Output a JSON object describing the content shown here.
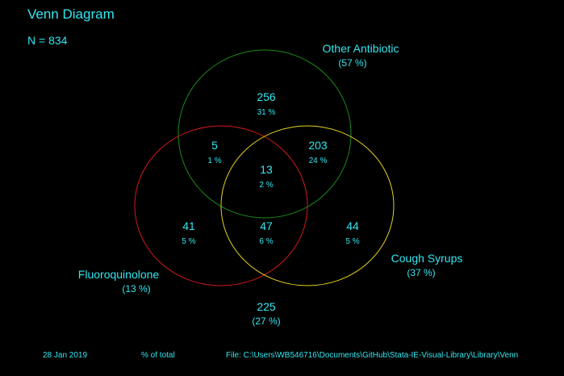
{
  "title": "Venn Diagram",
  "n_label": "N = 834",
  "colors": {
    "text": "#33e6f0",
    "other_antibiotic": "#1a8a1a",
    "fluoroquinolone": "#d41a1a",
    "cough_syrups": "#e6d21a",
    "background": "#000000"
  },
  "sets": {
    "other_antibiotic": {
      "name": "Other Antibiotic",
      "pct": "(57 %)"
    },
    "fluoroquinolone": {
      "name": "Fluoroquinolone",
      "pct": "(13 %)"
    },
    "cough_syrups": {
      "name": "Cough Syrups",
      "pct": "(37 %)"
    }
  },
  "regions": {
    "other_only": {
      "count": "256",
      "pct": "31 %"
    },
    "other_fluoro": {
      "count": "5",
      "pct": "1 %"
    },
    "other_cough": {
      "count": "203",
      "pct": "24 %"
    },
    "all_three": {
      "count": "13",
      "pct": "2 %"
    },
    "fluoro_only": {
      "count": "41",
      "pct": "5 %"
    },
    "fluoro_cough": {
      "count": "47",
      "pct": "6 %"
    },
    "cough_only": {
      "count": "44",
      "pct": "5 %"
    },
    "none": {
      "count": "225",
      "pct": "(27 %)"
    }
  },
  "footer": {
    "date": "28 Jan 2019",
    "note": "% of total",
    "file": "File: C:\\Users\\WB546716\\Documents\\GitHub\\Stata-IE-Visual-Library\\Library\\Venn"
  }
}
